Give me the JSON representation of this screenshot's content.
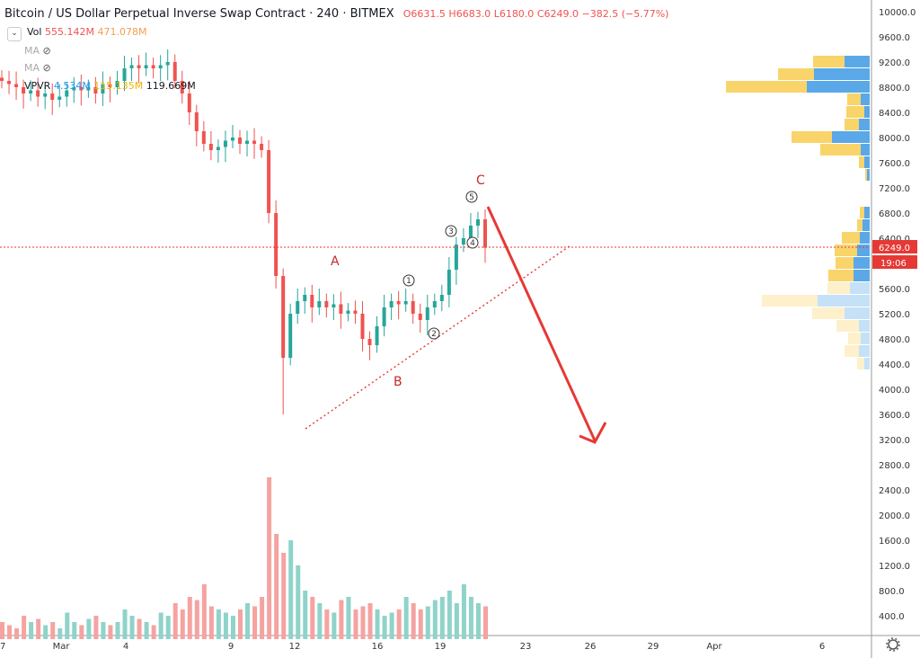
{
  "header": {
    "symbol": "Bitcoin / US Dollar Perpetual Inverse Swap Contract",
    "interval": "240",
    "exchange": "BITMEX",
    "open": "O6631.5",
    "high": "H6683.0",
    "low": "L6180.0",
    "close": "C6249.0",
    "change": "−382.5 (−5.77%)"
  },
  "vol": {
    "label": "Vol",
    "v1": "555.142M",
    "v2": "471.078M"
  },
  "ma": [
    {
      "label": "MA",
      "icon": "eye-off-icon"
    },
    {
      "label": "MA",
      "icon": "eye-off-icon"
    }
  ],
  "vpvr": {
    "label": "VPVR",
    "up": "4.534M",
    "down": "115.135M",
    "total": "119.669M"
  },
  "colors": {
    "up": "#26a69a",
    "down": "#ef5350",
    "vol_up": "#8fd3ca",
    "vol_down": "#f5a3a1",
    "vp_up": "#5aa8e8",
    "vp_down": "#f9d46a",
    "annotation": "#e53935"
  },
  "chart_data": {
    "type": "candlestick",
    "yaxis": {
      "ticks": [
        10000,
        9600,
        9200,
        8800,
        8400,
        8000,
        7600,
        7200,
        6800,
        6400,
        5600,
        5200,
        4800,
        4400,
        4000,
        3600,
        3200,
        2800,
        2400,
        2000,
        1600,
        1200,
        800,
        400
      ],
      "ylim": [
        400,
        10000
      ]
    },
    "xaxis": {
      "ticks": [
        "7",
        "Mar",
        "4",
        "9",
        "12",
        "16",
        "19",
        "23",
        "26",
        "29",
        "Apr",
        "6"
      ]
    },
    "last_price": "6249.0",
    "countdown": "19:06",
    "closes": [
      8900,
      8850,
      8800,
      8700,
      8750,
      8650,
      8700,
      8600,
      8650,
      8750,
      8800,
      8750,
      8800,
      8700,
      8850,
      8800,
      8900,
      9100,
      9150,
      9100,
      9150,
      9100,
      9150,
      9200,
      8900,
      8700,
      8400,
      8100,
      7900,
      7800,
      7850,
      7950,
      8000,
      7900,
      7950,
      7900,
      7800,
      6800,
      5800,
      4500,
      5200,
      5400,
      5500,
      5300,
      5400,
      5300,
      5350,
      5200,
      5250,
      5200,
      4800,
      4700,
      5000,
      5300,
      5400,
      5350,
      5400,
      5200,
      5100,
      5300,
      5400,
      5500,
      5900,
      6300,
      6400,
      6600,
      6700,
      6249
    ],
    "volume": [
      300,
      250,
      200,
      400,
      300,
      350,
      250,
      300,
      200,
      450,
      300,
      250,
      350,
      400,
      300,
      250,
      300,
      500,
      400,
      350,
      300,
      250,
      450,
      400,
      600,
      500,
      700,
      650,
      900,
      550,
      500,
      450,
      400,
      500,
      600,
      550,
      700,
      2600,
      1700,
      1400,
      1600,
      1200,
      800,
      700,
      600,
      500,
      450,
      650,
      700,
      500,
      550,
      600,
      500,
      400,
      450,
      500,
      700,
      600,
      500,
      550,
      650,
      700,
      800,
      600,
      900,
      700,
      600,
      550
    ],
    "volume_profile": [
      {
        "price": 9200,
        "up": 28,
        "down": 35
      },
      {
        "price": 9000,
        "up": 62,
        "down": 40
      },
      {
        "price": 8800,
        "up": 70,
        "down": 90
      },
      {
        "price": 8600,
        "up": 10,
        "down": 15
      },
      {
        "price": 8400,
        "up": 6,
        "down": 20
      },
      {
        "price": 8200,
        "up": 12,
        "down": 16
      },
      {
        "price": 8000,
        "up": 42,
        "down": 45
      },
      {
        "price": 7800,
        "up": 10,
        "down": 45
      },
      {
        "price": 7600,
        "up": 6,
        "down": 6
      },
      {
        "price": 7400,
        "up": 3,
        "down": 2
      },
      {
        "price": 6800,
        "up": 6,
        "down": 5
      },
      {
        "price": 6600,
        "up": 8,
        "down": 6
      },
      {
        "price": 6400,
        "up": 11,
        "down": 20
      },
      {
        "price": 6200,
        "up": 14,
        "down": 25
      },
      {
        "price": 6000,
        "up": 18,
        "down": 20
      },
      {
        "price": 5800,
        "up": 18,
        "down": 28
      },
      {
        "price": 5600,
        "up": 22,
        "down": 25
      },
      {
        "price": 5400,
        "up": 58,
        "down": 62
      },
      {
        "price": 5200,
        "up": 28,
        "down": 36
      },
      {
        "price": 5000,
        "up": 12,
        "down": 25
      },
      {
        "price": 4800,
        "up": 10,
        "down": 14
      },
      {
        "price": 4600,
        "up": 12,
        "down": 16
      },
      {
        "price": 4400,
        "up": 6,
        "down": 8
      }
    ],
    "annotations": {
      "wave_labels": [
        "A",
        "B",
        "C"
      ],
      "sub_waves": [
        "1",
        "2",
        "3",
        "4",
        "5"
      ]
    }
  }
}
